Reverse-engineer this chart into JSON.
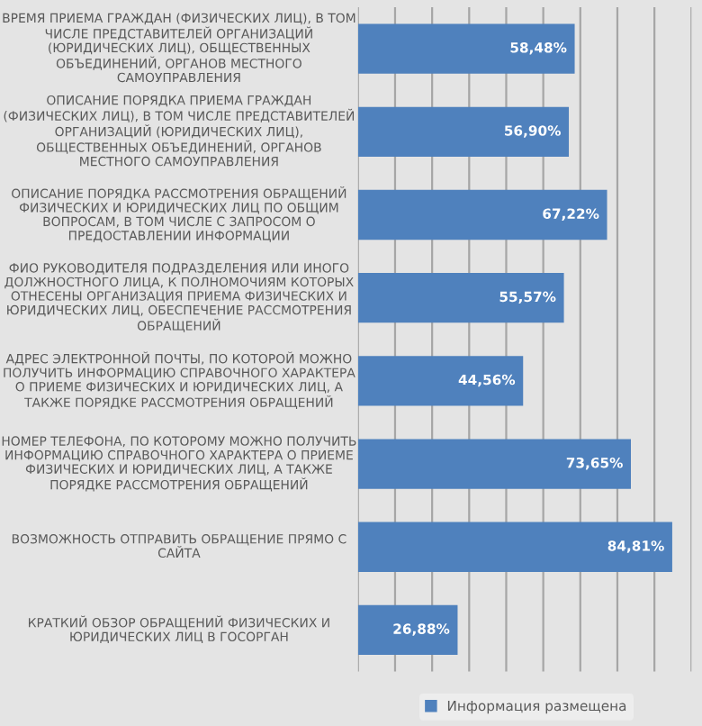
{
  "chart_data": {
    "type": "bar",
    "orientation": "horizontal",
    "categories": [
      "ВРЕМЯ ПРИЕМА ГРАЖДАН (ФИЗИЧЕСКИХ ЛИЦ), В ТОМ ЧИСЛЕ ПРЕДСТАВИТЕЛЕЙ ОРГАНИЗАЦИЙ (ЮРИДИЧЕСКИХ ЛИЦ), ОБЩЕСТВЕННЫХ ОБЪЕДИНЕНИЙ, ОРГАНОВ МЕСТНОГО САМОУПРАВЛЕНИЯ",
      "ОПИСАНИЕ ПОРЯДКА ПРИЕМА ГРАЖДАН (ФИЗИЧЕСКИХ ЛИЦ), В ТОМ ЧИСЛЕ ПРЕДСТАВИТЕЛЕЙ ОРГАНИЗАЦИЙ (ЮРИДИЧЕСКИХ ЛИЦ), ОБЩЕСТВЕННЫХ ОБЪЕДИНЕНИЙ, ОРГАНОВ МЕСТНОГО САМОУПРАВЛЕНИЯ",
      "ОПИСАНИЕ ПОРЯДКА РАССМОТРЕНИЯ ОБРАЩЕНИЙ ФИЗИЧЕСКИХ И ЮРИДИЧЕСКИХ ЛИЦ ПО ОБЩИМ ВОПРОСАМ, В ТОМ ЧИСЛЕ С ЗАПРОСОМ О ПРЕДОСТАВЛЕНИИ ИНФОРМАЦИИ",
      "ФИО РУКОВОДИТЕЛЯ ПОДРАЗДЕЛЕНИЯ ИЛИ ИНОГО ДОЛЖНОСТНОГО ЛИЦА, К ПОЛНОМОЧИЯМ КОТОРЫХ ОТНЕСЕНЫ ОРГАНИЗАЦИЯ ПРИЕМА ФИЗИЧЕСКИХ И ЮРИДИЧЕСКИХ ЛИЦ, ОБЕСПЕЧЕНИЕ РАССМОТРЕНИЯ ОБРАЩЕНИЙ",
      "АДРЕС ЭЛЕКТРОННОЙ ПОЧТЫ, ПО КОТОРОЙ МОЖНО ПОЛУЧИТЬ ИНФОРМАЦИЮ СПРАВОЧНОГО ХАРАКТЕРА О ПРИЕМЕ ФИЗИЧЕСКИХ И ЮРИДИЧЕСКИХ ЛИЦ, А ТАКЖЕ ПОРЯДКЕ РАССМОТРЕНИЯ ОБРАЩЕНИЙ",
      "НОМЕР ТЕЛЕФОНА, ПО КОТОРОМУ МОЖНО ПОЛУЧИТЬ ИНФОРМАЦИЮ СПРАВОЧНОГО ХАРАКТЕРА О ПРИЕМЕ ФИЗИЧЕСКИХ И ЮРИДИЧЕСКИХ ЛИЦ, А ТАКЖЕ ПОРЯДКЕ РАССМОТРЕНИЯ ОБРАЩЕНИЙ",
      "ВОЗМОЖНОСТЬ ОТПРАВИТЬ ОБРАЩЕНИЕ ПРЯМО С САЙТА",
      "КРАТКИЙ ОБЗОР ОБРАЩЕНИЙ ФИЗИЧЕСКИХ И ЮРИДИЧЕСКИХ ЛИЦ В ГОСОРГАН"
    ],
    "series": [
      {
        "name": "Информация размещена",
        "color": "#4f81bd",
        "values": [
          58.48,
          56.9,
          67.22,
          55.57,
          44.56,
          73.65,
          84.81,
          26.88
        ],
        "value_labels": [
          "58,48%",
          "56,90%",
          "67,22%",
          "55,57%",
          "44,56%",
          "73,65%",
          "84,81%",
          "26,88%"
        ]
      }
    ],
    "xlim": [
      0,
      90
    ],
    "xticks": [
      {
        "value": 0,
        "label": null
      },
      {
        "value": 10,
        "label": null
      },
      {
        "value": 20,
        "label": null
      },
      {
        "value": 30,
        "label": null
      },
      {
        "value": 40,
        "label": null
      },
      {
        "value": 50,
        "label": null
      },
      {
        "value": 60,
        "label": null
      },
      {
        "value": 70,
        "label": null
      },
      {
        "value": 80,
        "label": null
      },
      {
        "value": 90,
        "label": null
      }
    ],
    "tick_labels": "y",
    "grid": "x",
    "legend": "bottom"
  }
}
